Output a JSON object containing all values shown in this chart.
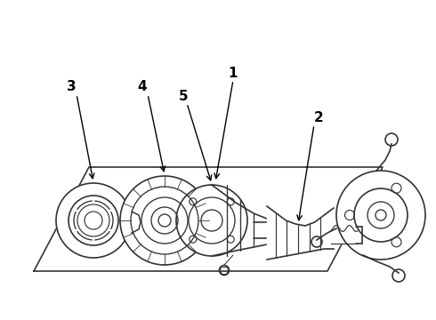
{
  "bg_color": "#ffffff",
  "line_color": "#333333",
  "label_color": "#000000",
  "fig_width": 4.9,
  "fig_height": 3.6,
  "dpi": 100,
  "lw": 1.2
}
